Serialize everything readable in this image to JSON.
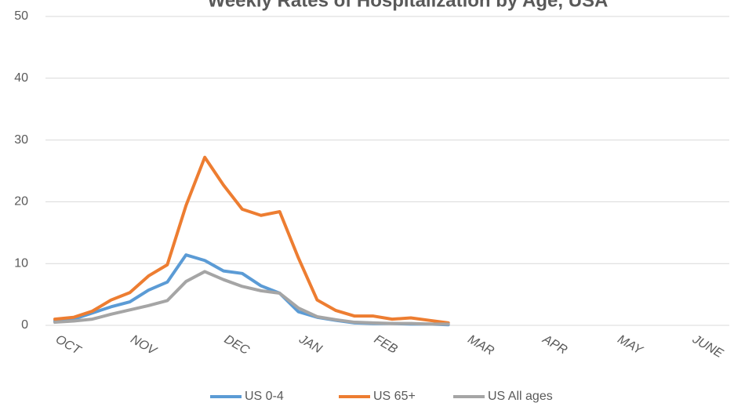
{
  "chart_data": {
    "type": "line",
    "title": "Weekly Rates of Hospitalization by Age, USA",
    "categories": [
      "OCT",
      null,
      null,
      null,
      "NOV",
      null,
      null,
      null,
      null,
      "DEC",
      null,
      null,
      null,
      "JAN",
      null,
      null,
      null,
      "FEB",
      null,
      null,
      null,
      null,
      "MAR",
      null,
      null,
      null,
      "APR",
      null,
      null,
      null,
      "MAY",
      null,
      null,
      null,
      "JUNE",
      null
    ],
    "series": [
      {
        "name": "US 0-4",
        "color": "#5b9bd5",
        "values": [
          0.7,
          1.0,
          2.0,
          3.0,
          3.8,
          5.7,
          7.0,
          11.4,
          10.5,
          8.8,
          8.4,
          6.4,
          5.2,
          2.2,
          1.3,
          0.8,
          0.4,
          0.3,
          0.3,
          0.2,
          0.2,
          0.1,
          null,
          null,
          null,
          null,
          null,
          null,
          null,
          null,
          null,
          null,
          null,
          null,
          null,
          null
        ]
      },
      {
        "name": "US 65+",
        "color": "#ed7d31",
        "values": [
          1.0,
          1.3,
          2.3,
          4.1,
          5.3,
          8.0,
          9.8,
          19.4,
          27.2,
          22.7,
          18.8,
          17.8,
          18.4,
          10.9,
          4.1,
          2.4,
          1.5,
          1.5,
          1.0,
          1.2,
          0.8,
          0.4,
          null,
          null,
          null,
          null,
          null,
          null,
          null,
          null,
          null,
          null,
          null,
          null,
          null,
          null
        ]
      },
      {
        "name": "US All ages",
        "color": "#a5a5a5",
        "values": [
          0.5,
          0.7,
          1.0,
          1.8,
          2.5,
          3.2,
          4.0,
          7.1,
          8.7,
          7.4,
          6.3,
          5.6,
          5.2,
          2.8,
          1.4,
          0.9,
          0.5,
          0.4,
          0.3,
          0.3,
          0.2,
          0.2,
          null,
          null,
          null,
          null,
          null,
          null,
          null,
          null,
          null,
          null,
          null,
          null,
          null,
          null
        ]
      }
    ],
    "ylim": [
      0,
      50
    ],
    "yticks": [
      0,
      10,
      20,
      30,
      40,
      50
    ],
    "grid": true
  }
}
